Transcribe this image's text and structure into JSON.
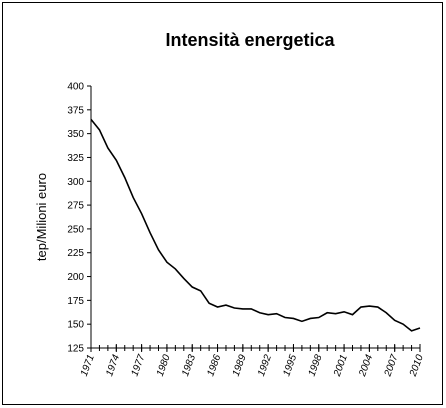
{
  "chart_data": {
    "type": "line",
    "title": "Intensità energetica",
    "y_label": "tep/Milioni euro",
    "x": [
      1971,
      1972,
      1973,
      1974,
      1975,
      1976,
      1977,
      1978,
      1979,
      1980,
      1981,
      1982,
      1983,
      1984,
      1985,
      1986,
      1987,
      1988,
      1989,
      1990,
      1991,
      1992,
      1993,
      1994,
      1995,
      1996,
      1997,
      1998,
      1999,
      2000,
      2001,
      2002,
      2003,
      2004,
      2005,
      2006,
      2007,
      2008,
      2009,
      2010
    ],
    "series": [
      {
        "name": "Intensità energetica",
        "color": "#000000",
        "values": [
          365,
          354,
          335,
          322,
          304,
          283,
          266,
          246,
          228,
          215,
          208,
          198,
          189,
          185,
          172,
          168,
          170,
          167,
          166,
          166,
          162,
          160,
          161,
          157,
          156,
          153,
          156,
          157,
          162,
          161,
          163,
          160,
          168,
          169,
          168,
          162,
          154,
          150,
          143,
          146
        ]
      }
    ],
    "xlim": [
      1971,
      2010
    ],
    "xticks": [
      1971,
      1974,
      1977,
      1980,
      1983,
      1986,
      1989,
      1992,
      1995,
      1998,
      2001,
      2004,
      2007,
      2010
    ],
    "ylim": [
      125,
      400
    ],
    "yticks": [
      125,
      150,
      175,
      200,
      225,
      250,
      275,
      300,
      325,
      350,
      375,
      400
    ],
    "grid": false
  }
}
